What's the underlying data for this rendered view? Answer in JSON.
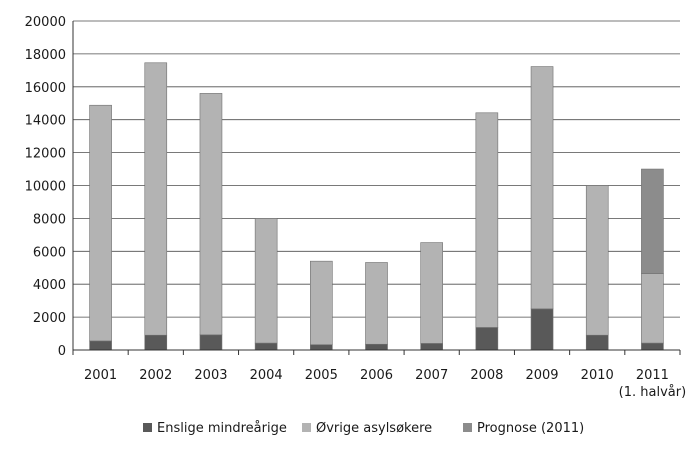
{
  "chart_data": {
    "type": "bar",
    "stacked": true,
    "categories": [
      "2001",
      "2002",
      "2003",
      "2004",
      "2005",
      "2006",
      "2007",
      "2008",
      "2009",
      "2010",
      "2011"
    ],
    "category_sublabels": [
      "",
      "",
      "",
      "",
      "",
      "",
      "",
      "",
      "",
      "",
      "(1. halvår)"
    ],
    "series": [
      {
        "name": "Enslige mindreårige",
        "color": "#595959",
        "values": [
          550,
          900,
          920,
          420,
          320,
          350,
          400,
          1370,
          2500,
          900,
          420
        ]
      },
      {
        "name": "Øvrige asylsøkere",
        "color": "#b3b3b3",
        "values": [
          14330,
          16560,
          14680,
          7580,
          5080,
          4970,
          6130,
          13050,
          14730,
          9100,
          4230
        ]
      },
      {
        "name": "Prognose (2011)",
        "color": "#8c8c8c",
        "values": [
          0,
          0,
          0,
          0,
          0,
          0,
          0,
          0,
          0,
          0,
          6350
        ]
      }
    ],
    "ylim": [
      0,
      20000
    ],
    "yticks": [
      0,
      2000,
      4000,
      6000,
      8000,
      10000,
      12000,
      14000,
      16000,
      18000,
      20000
    ],
    "grid": true,
    "legend_position": "bottom",
    "title": "",
    "xlabel": "",
    "ylabel": ""
  }
}
